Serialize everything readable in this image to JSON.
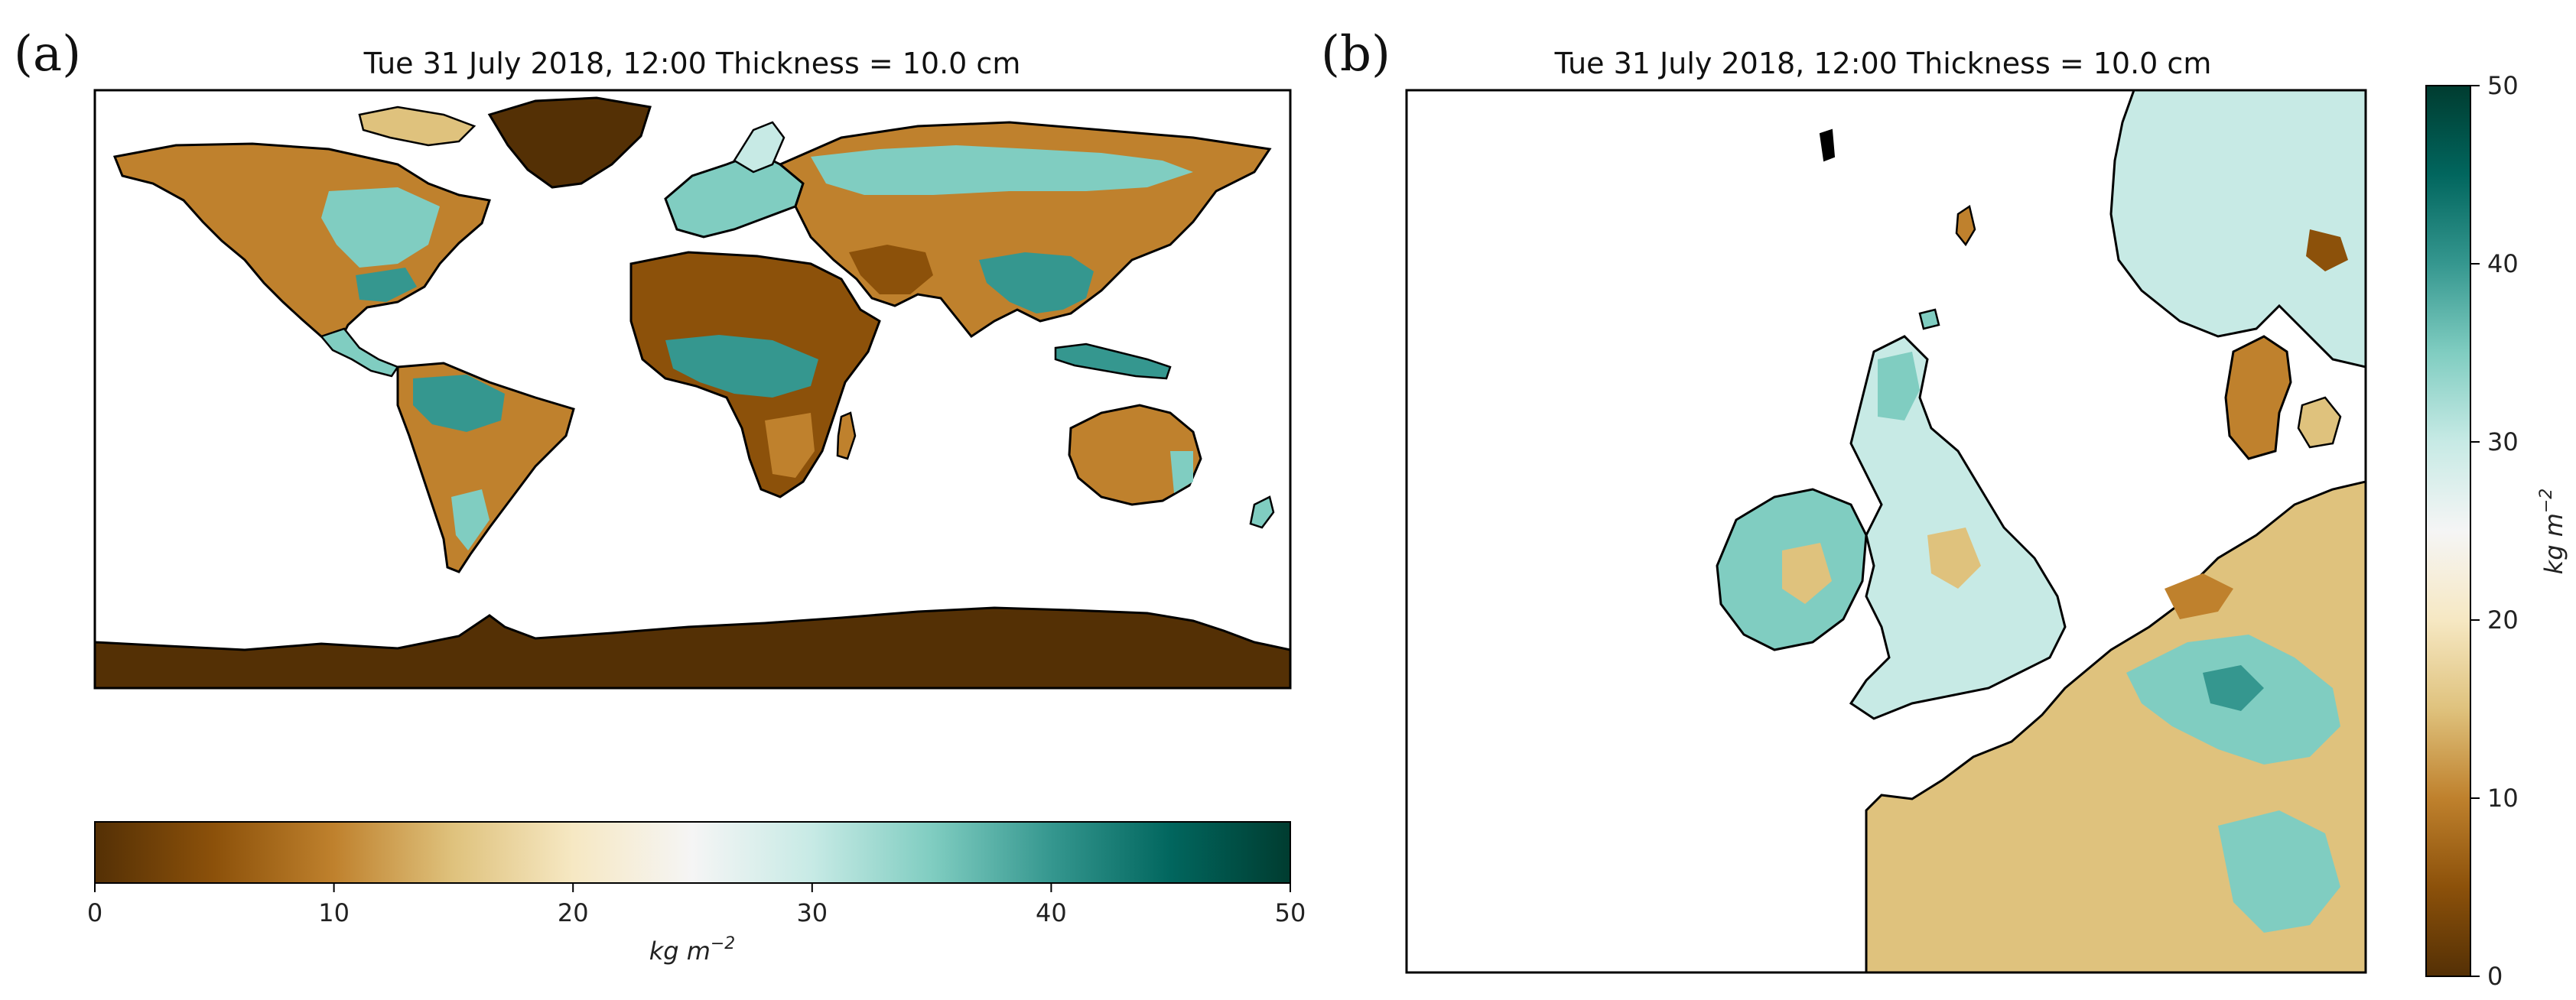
{
  "chart_data": [
    {
      "type": "heatmap",
      "panel": "(a)",
      "title": "Tue 31 July 2018, 12:00 Thickness = 10.0 cm",
      "region": "Global map (equirectangular)",
      "colorbar": {
        "orientation": "horizontal",
        "range": [
          0,
          50
        ],
        "ticks": [
          "0",
          "10",
          "20",
          "30",
          "40",
          "50"
        ],
        "label_main": "kg m",
        "label_sup": "−2",
        "colormap": [
          "#543005",
          "#8c510a",
          "#bf812d",
          "#dfc27d",
          "#f6e8c3",
          "#f5f5f5",
          "#c7eae5",
          "#80cdc1",
          "#35978f",
          "#01665e",
          "#003c30"
        ]
      }
    },
    {
      "type": "heatmap",
      "panel": "(b)",
      "title": "Tue 31 July 2018, 12:00 Thickness = 10.0 cm",
      "region": "North-west Europe (British Isles, France, Benelux, Scandinavia)",
      "colorbar": {
        "orientation": "vertical",
        "range": [
          0,
          50
        ],
        "ticks": [
          "0",
          "10",
          "20",
          "30",
          "40",
          "50"
        ],
        "label_main": "kg m",
        "label_sup": "−2",
        "colormap": [
          "#543005",
          "#8c510a",
          "#bf812d",
          "#dfc27d",
          "#f6e8c3",
          "#f5f5f5",
          "#c7eae5",
          "#80cdc1",
          "#35978f",
          "#01665e",
          "#003c30"
        ]
      }
    }
  ]
}
